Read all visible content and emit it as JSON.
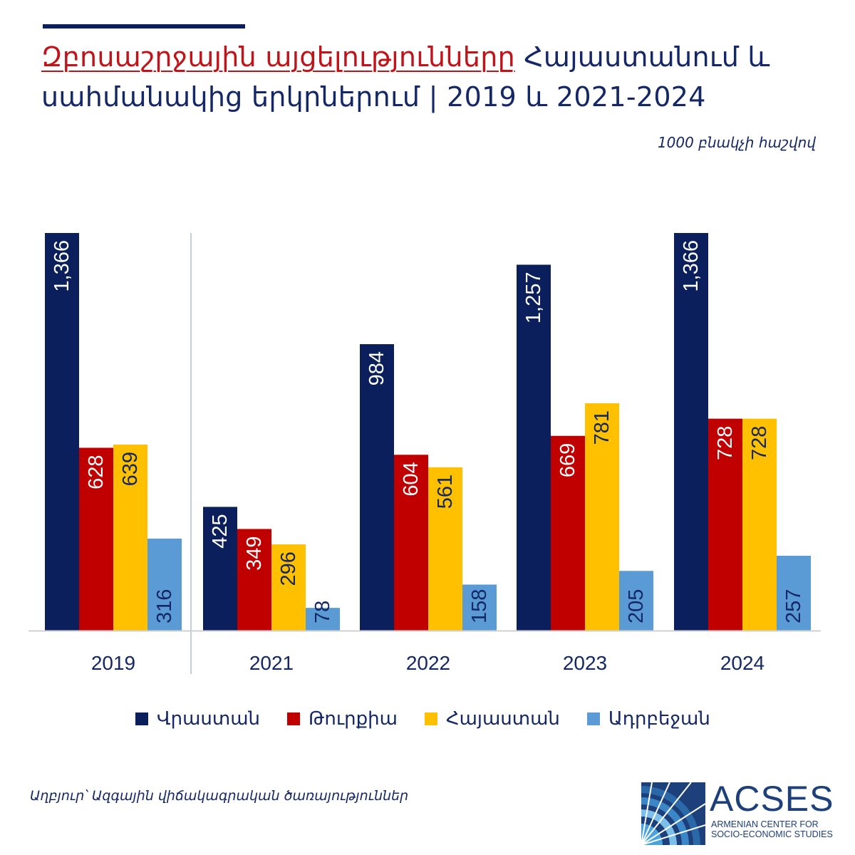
{
  "title": {
    "part_red": "Զբոսաշրջային այցելությունները",
    "part_blue": "Հայաստանում և սահմանակից երկրներում | 2019 և 2021-2024"
  },
  "subtitle": "1000 բնակչի հաշվով",
  "source": "Աղբյուր՝ Ազգային վիճակագրական ծառայություններ",
  "logo": {
    "name": "ACSES",
    "line1": "ARMENIAN CENTER FOR",
    "line2": "SOCIO-ECONOMIC STUDIES"
  },
  "chart_data": {
    "type": "bar",
    "title": "Զբոսաշրջային այցելությունները Հայաստանում և սահմանակից երկրներում | 2019 և 2021-2024",
    "xlabel": "",
    "ylabel": "1000 բնակչի հաշվով",
    "ylim": [
      0,
      1366
    ],
    "grid": false,
    "legend_position": "bottom",
    "categories": [
      "2019",
      "2021",
      "2022",
      "2023",
      "2024"
    ],
    "series": [
      {
        "name": "Վրաստան",
        "color": "#0b1f5c",
        "values": [
          1366,
          425,
          984,
          1257,
          1366
        ],
        "labels": [
          "1,366",
          "425",
          "984",
          "1,257",
          "1,366"
        ]
      },
      {
        "name": "Թուրքիա",
        "color": "#c00000",
        "values": [
          628,
          349,
          604,
          669,
          728
        ],
        "labels": [
          "628",
          "349",
          "604",
          "669",
          "728"
        ]
      },
      {
        "name": "Հայաստան",
        "color": "#ffc000",
        "values": [
          639,
          296,
          561,
          781,
          728
        ],
        "labels": [
          "639",
          "296",
          "561",
          "781",
          "728"
        ]
      },
      {
        "name": "Ադրբեջան",
        "color": "#5b9bd5",
        "values": [
          316,
          78,
          158,
          205,
          257
        ],
        "labels": [
          "316",
          "78",
          "158",
          "205",
          "257"
        ]
      }
    ]
  }
}
